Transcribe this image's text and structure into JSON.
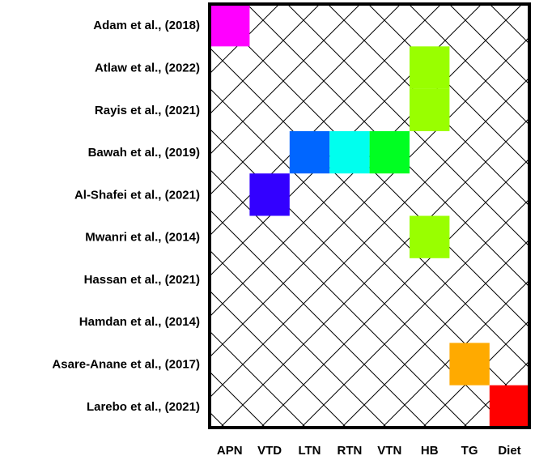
{
  "chart_data": {
    "type": "heatmap",
    "title": "",
    "xlabel": "",
    "ylabel": "",
    "rows": [
      "Adam et al., (2018)",
      "Atlaw et al., (2022)",
      "Rayis et al., (2021)",
      "Bawah et al., (2019)",
      "Al-Shafei et al., (2021)",
      "Mwanri et al., (2014)",
      "Hassan et al., (2021)",
      "Hamdan et al., (2014)",
      "Asare-Anane et al., (2017)",
      "Larebo et al., (2021)"
    ],
    "columns": [
      {
        "label": "APN",
        "color": "#ff00ff"
      },
      {
        "label": "VTD",
        "color": "#3300ff"
      },
      {
        "label": "LTN",
        "color": "#0066ff"
      },
      {
        "label": "RTN",
        "color": "#00ffee"
      },
      {
        "label": "VTN",
        "color": "#00ff22"
      },
      {
        "label": "HB",
        "color": "#99ff00"
      },
      {
        "label": "TG",
        "color": "#ffaa00"
      },
      {
        "label": "Diet",
        "color": "#ff0000"
      }
    ],
    "cells": [
      {
        "row": 0,
        "col": 0
      },
      {
        "row": 1,
        "col": 5
      },
      {
        "row": 2,
        "col": 5
      },
      {
        "row": 3,
        "col": 2
      },
      {
        "row": 3,
        "col": 3
      },
      {
        "row": 3,
        "col": 4
      },
      {
        "row": 4,
        "col": 1
      },
      {
        "row": 5,
        "col": 5
      },
      {
        "row": 8,
        "col": 6
      },
      {
        "row": 9,
        "col": 7
      }
    ],
    "background_pattern": "diagonal-crosshatch",
    "grid": false,
    "legend": "none"
  }
}
